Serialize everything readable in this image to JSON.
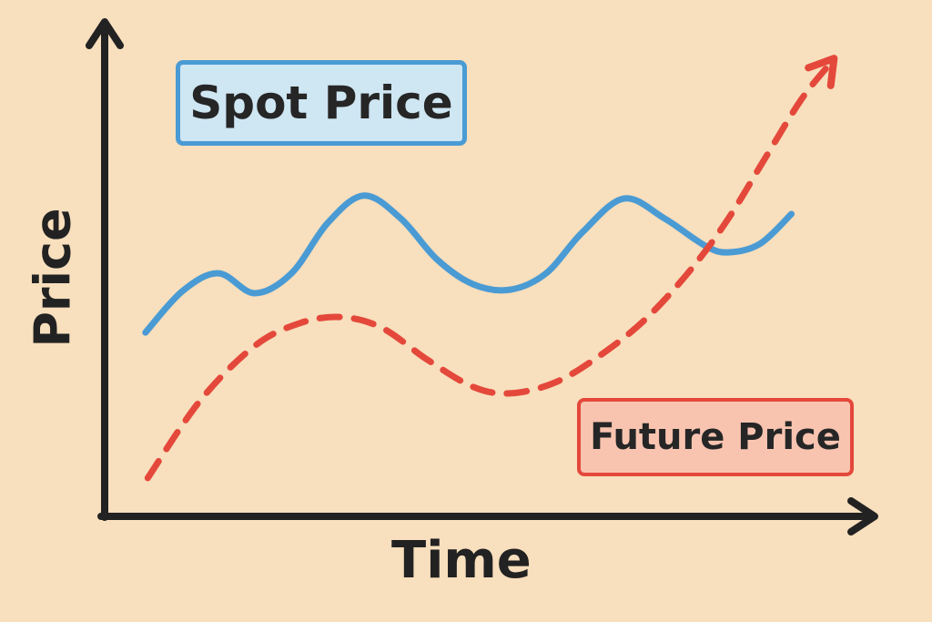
{
  "chart_data": {
    "type": "line",
    "title": "",
    "xlabel": "Time",
    "ylabel": "Price",
    "xlim": [
      0,
      100
    ],
    "ylim": [
      0,
      100
    ],
    "grid": false,
    "ticks": false,
    "legend": "inline-labels",
    "series": [
      {
        "name": "Spot Price",
        "color": "#4a9bd4",
        "style": "solid",
        "x": [
          5.3,
          10.1,
          14.8,
          19.5,
          24.3,
          29.0,
          33.7,
          38.5,
          43.2,
          47.9,
          52.7,
          57.4,
          62.1,
          67.5,
          72.8,
          78.1,
          81.1,
          85.2,
          89.3
        ],
        "y": [
          36.9,
          45.2,
          48.8,
          44.8,
          48.8,
          58.9,
          64.4,
          59.8,
          51.6,
          46.6,
          45.5,
          48.8,
          57.0,
          63.8,
          59.8,
          54.3,
          53.0,
          54.7,
          60.7
        ]
      },
      {
        "name": "Future Price",
        "color": "#e4483b",
        "style": "dashed",
        "arrow": true,
        "x": [
          5.6,
          12.4,
          19.5,
          25.4,
          30.8,
          36.1,
          42.0,
          47.9,
          52.7,
          58.6,
          64.5,
          70.4,
          76.3,
          81.1,
          85.8,
          90.5,
          94.1
        ],
        "y": [
          7.7,
          23.2,
          34.2,
          38.8,
          40.0,
          37.8,
          31.4,
          26.0,
          24.7,
          26.9,
          32.4,
          39.7,
          49.7,
          59.8,
          71.7,
          83.5,
          90.5
        ]
      }
    ]
  },
  "colors": {
    "background": "#f8dfbd",
    "axis": "#222222"
  }
}
